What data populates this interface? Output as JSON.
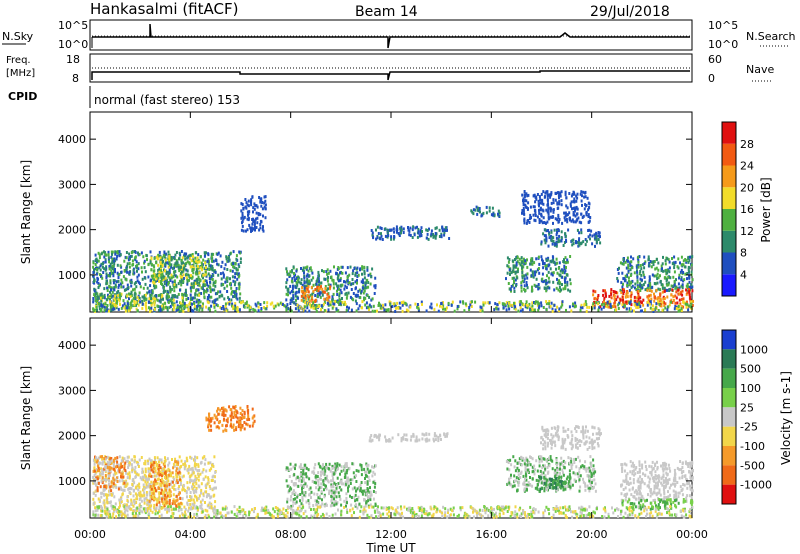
{
  "header": {
    "station": "Hankasalmi (fitACF)",
    "beam": "Beam 14",
    "date": "29/Jul/2018"
  },
  "noise_panel": {
    "left_label": "N.Sky",
    "left_ticks": [
      "10^5",
      "10^0"
    ],
    "right_ticks": [
      "10^5",
      "10^0"
    ],
    "right_label": "N.Search"
  },
  "freq_panel": {
    "left_label_1": "Freq.",
    "left_label_2": "[MHz]",
    "left_ticks": [
      "18",
      "8"
    ],
    "right_ticks": [
      "60",
      "0"
    ],
    "right_label": "Nave"
  },
  "cpid_panel": {
    "label": "CPID",
    "program": "normal (fast stereo) 153"
  },
  "chart_data": [
    {
      "type": "heatmap",
      "name": "power",
      "ylabel": "Slant Range [km]",
      "yticks": [
        "1000",
        "2000",
        "3000",
        "4000"
      ],
      "ylim": [
        180,
        4600
      ],
      "colorbar_label": "Power [dB]",
      "colorbar_ticks": [
        "4",
        "8",
        "12",
        "16",
        "20",
        "24",
        "28"
      ],
      "colors": [
        "#1a1aff",
        "#1f4fbf",
        "#2d8a6b",
        "#4fb040",
        "#f2dc2a",
        "#f59a1a",
        "#f25a12",
        "#e01010"
      ]
    },
    {
      "type": "heatmap",
      "name": "velocity",
      "ylabel": "Slant Range [km]",
      "yticks": [
        "1000",
        "2000",
        "3000",
        "4000"
      ],
      "ylim": [
        180,
        4600
      ],
      "colorbar_label": "Velocity [m s-1]",
      "colorbar_ticks": [
        "1000",
        "500",
        "100",
        "25",
        "-25",
        "-100",
        "-500",
        "-1000"
      ],
      "colors": [
        "#1a3fd0",
        "#2a7a55",
        "#46a84a",
        "#78d04a",
        "#c8c8c8",
        "#f2d64a",
        "#f59a2a",
        "#f06a18",
        "#e01010"
      ]
    }
  ],
  "x_axis": {
    "ticks": [
      "00:00",
      "04:00",
      "08:00",
      "12:00",
      "16:00",
      "20:00",
      "00:00"
    ],
    "label": "Time UT"
  }
}
